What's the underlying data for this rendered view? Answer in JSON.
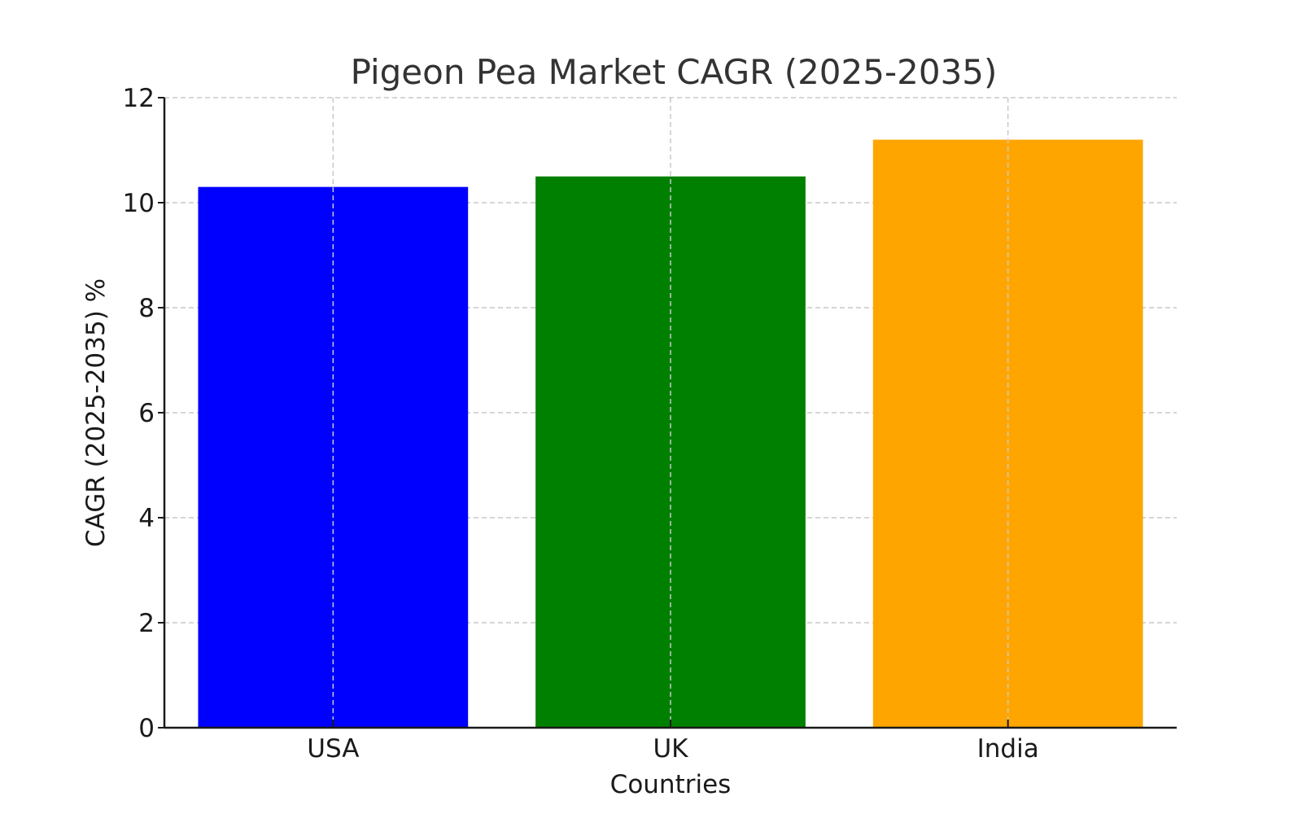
{
  "chart_data": {
    "type": "bar",
    "title": "Pigeon Pea Market CAGR (2025-2035)",
    "xlabel": "Countries",
    "ylabel": "CAGR (2025-2035) %",
    "categories": [
      "USA",
      "UK",
      "India"
    ],
    "values": [
      10.3,
      10.5,
      11.2
    ],
    "colors": [
      "#0000ff",
      "#008000",
      "#ffa500"
    ],
    "ylim": [
      0,
      12
    ],
    "yticks": [
      0,
      2,
      4,
      6,
      8,
      10,
      12
    ],
    "grid": true,
    "legend": "none"
  }
}
